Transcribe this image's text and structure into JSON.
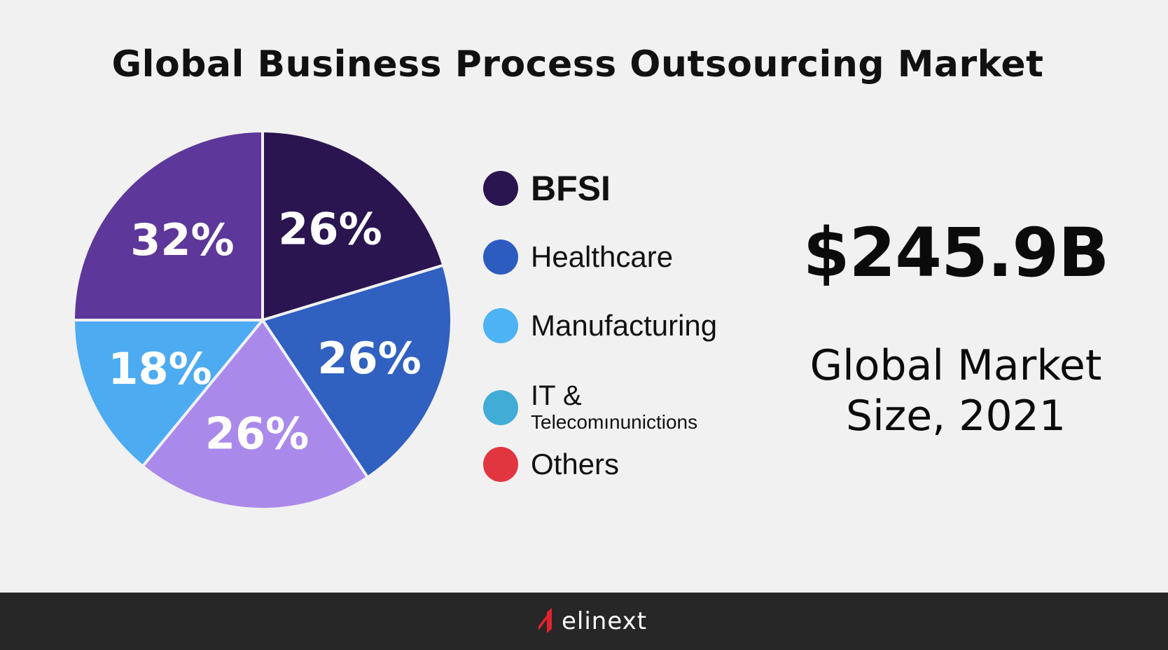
{
  "title": "Global Business Process Outsourcing Market",
  "chart_data": {
    "type": "pie",
    "slices": [
      {
        "label": "BFSI",
        "value": 26,
        "display": "26%",
        "color": "#2a1550"
      },
      {
        "label": "Healthcare",
        "value": 26,
        "display": "26%",
        "color": "#3060c0"
      },
      {
        "label": "Manufacturing",
        "value": 26,
        "display": "26%",
        "color": "#a98aeb"
      },
      {
        "label": "IT & Telecomınunictions",
        "value": 18,
        "display": "18%",
        "color": "#4dabf2"
      },
      {
        "label": "Others",
        "value": 32,
        "display": "32%",
        "color": "#5d3799"
      }
    ],
    "legend_position": "right"
  },
  "legend": [
    {
      "label": "BFSI",
      "color": "#2a1550"
    },
    {
      "label": "Healthcare",
      "color": "#2c5cc0"
    },
    {
      "label": "Manufacturing",
      "color": "#4db3f4"
    },
    {
      "label_line1": "IT &",
      "label_line2": "Telecomınunictions",
      "color": "#41acd6"
    },
    {
      "label": "Others",
      "color": "#e1363f"
    }
  ],
  "stat": {
    "value": "$245.9B",
    "caption_line1": "Global Market",
    "caption_line2": "Size, 2021"
  },
  "footer": {
    "brand": "elinext",
    "brand_color": "#e2232d"
  }
}
